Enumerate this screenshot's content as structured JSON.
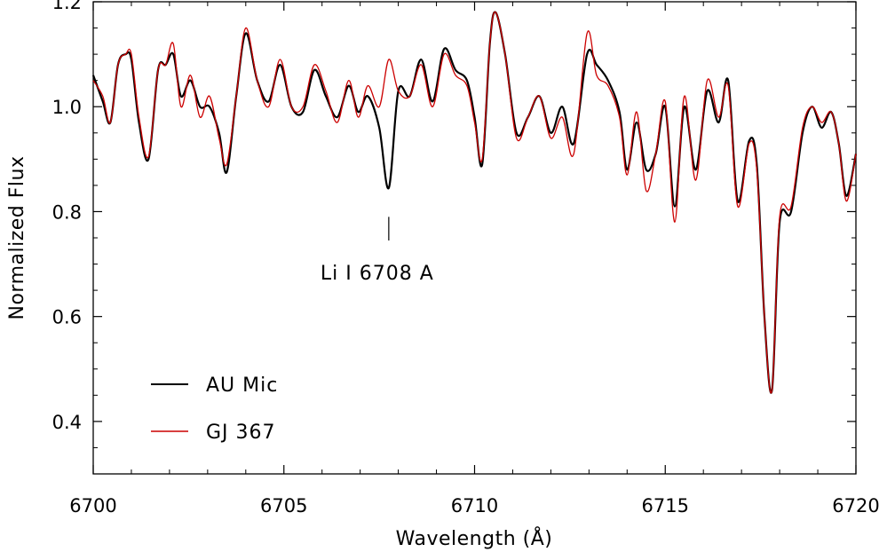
{
  "chart_data": {
    "type": "line",
    "xlabel": "Wavelength (Å)",
    "ylabel": "Normalized Flux",
    "xlim": [
      6700,
      6720
    ],
    "ylim": [
      0.3,
      1.2
    ],
    "xticks": [
      6700,
      6705,
      6710,
      6715,
      6720
    ],
    "xtick_labels": [
      "6700",
      "6705",
      "6710",
      "6715",
      "6720"
    ],
    "yticks": [
      0.4,
      0.6,
      0.8,
      1.0,
      1.2
    ],
    "ytick_labels": [
      "0.4",
      "0.6",
      "0.8",
      "1.0",
      "1.2"
    ],
    "grid": false,
    "legend_position": "lower-left",
    "annotations": [
      {
        "text": "Li I 6708 A",
        "x": 6707.75,
        "y_top": 0.79,
        "y_bottom": 0.745
      }
    ],
    "series": [
      {
        "name": "AU Mic",
        "color": "#000000",
        "x": [
          6700.0,
          6700.25,
          6700.45,
          6700.65,
          6700.85,
          6701.0,
          6701.2,
          6701.45,
          6701.7,
          6701.9,
          6702.1,
          6702.3,
          6702.55,
          6702.8,
          6703.05,
          6703.3,
          6703.5,
          6703.75,
          6704.0,
          6704.3,
          6704.6,
          6704.9,
          6705.2,
          6705.5,
          6705.8,
          6706.1,
          6706.4,
          6706.7,
          6706.95,
          6707.2,
          6707.5,
          6707.75,
          6708.0,
          6708.3,
          6708.6,
          6708.9,
          6709.2,
          6709.5,
          6709.8,
          6710.0,
          6710.2,
          6710.4,
          6710.55,
          6710.8,
          6711.1,
          6711.4,
          6711.7,
          6712.0,
          6712.3,
          6712.6,
          6712.95,
          6713.2,
          6713.5,
          6713.8,
          6714.0,
          6714.25,
          6714.5,
          6714.75,
          6715.0,
          6715.25,
          6715.5,
          6715.8,
          6716.1,
          6716.4,
          6716.65,
          6716.9,
          6717.2,
          6717.4,
          6717.6,
          6717.8,
          6718.0,
          6718.3,
          6718.6,
          6718.85,
          6719.1,
          6719.35,
          6719.55,
          6719.75,
          6720.0
        ],
        "y": [
          1.06,
          1.01,
          0.97,
          1.08,
          1.1,
          1.09,
          0.97,
          0.9,
          1.07,
          1.08,
          1.1,
          1.02,
          1.05,
          1.0,
          1.0,
          0.95,
          0.875,
          1.02,
          1.14,
          1.05,
          1.01,
          1.08,
          1.0,
          0.99,
          1.07,
          1.02,
          0.98,
          1.04,
          0.99,
          1.02,
          0.96,
          0.845,
          1.03,
          1.02,
          1.09,
          1.01,
          1.11,
          1.07,
          1.05,
          0.98,
          0.89,
          1.12,
          1.18,
          1.1,
          0.95,
          0.98,
          1.02,
          0.95,
          1.0,
          0.93,
          1.1,
          1.08,
          1.05,
          0.99,
          0.88,
          0.97,
          0.88,
          0.91,
          1.0,
          0.81,
          1.0,
          0.88,
          1.03,
          0.97,
          1.05,
          0.82,
          0.935,
          0.89,
          0.6,
          0.46,
          0.78,
          0.8,
          0.95,
          1.0,
          0.96,
          0.99,
          0.93,
          0.83,
          0.91
        ]
      },
      {
        "name": "GJ 367",
        "color": "#cc0000",
        "x": [
          6700.0,
          6700.25,
          6700.45,
          6700.65,
          6700.85,
          6701.0,
          6701.2,
          6701.45,
          6701.7,
          6701.9,
          6702.1,
          6702.3,
          6702.55,
          6702.8,
          6703.05,
          6703.3,
          6703.5,
          6703.75,
          6704.0,
          6704.3,
          6704.6,
          6704.9,
          6705.2,
          6705.5,
          6705.8,
          6706.1,
          6706.4,
          6706.7,
          6706.95,
          6707.2,
          6707.5,
          6707.75,
          6708.0,
          6708.3,
          6708.6,
          6708.9,
          6709.2,
          6709.5,
          6709.8,
          6710.0,
          6710.2,
          6710.4,
          6710.55,
          6710.8,
          6711.1,
          6711.4,
          6711.7,
          6712.0,
          6712.3,
          6712.6,
          6712.95,
          6713.2,
          6713.5,
          6713.8,
          6714.0,
          6714.25,
          6714.5,
          6714.75,
          6715.0,
          6715.25,
          6715.5,
          6715.8,
          6716.1,
          6716.4,
          6716.65,
          6716.9,
          6717.2,
          6717.4,
          6717.6,
          6717.8,
          6718.0,
          6718.3,
          6718.6,
          6718.85,
          6719.1,
          6719.35,
          6719.55,
          6719.75,
          6720.0
        ],
        "y": [
          1.05,
          1.02,
          0.97,
          1.08,
          1.1,
          1.1,
          0.98,
          0.905,
          1.07,
          1.08,
          1.12,
          1.0,
          1.06,
          0.98,
          1.02,
          0.94,
          0.89,
          1.02,
          1.15,
          1.05,
          1.0,
          1.09,
          1.0,
          1.0,
          1.08,
          1.03,
          0.97,
          1.05,
          0.98,
          1.04,
          1.0,
          1.09,
          1.03,
          1.02,
          1.08,
          1.0,
          1.1,
          1.06,
          1.04,
          0.97,
          0.9,
          1.12,
          1.18,
          1.1,
          0.94,
          0.98,
          1.02,
          0.94,
          0.98,
          0.91,
          1.14,
          1.06,
          1.04,
          0.98,
          0.87,
          0.99,
          0.84,
          0.91,
          1.01,
          0.78,
          1.02,
          0.86,
          1.05,
          0.98,
          1.04,
          0.81,
          0.93,
          0.88,
          0.6,
          0.46,
          0.79,
          0.81,
          0.96,
          1.0,
          0.97,
          0.99,
          0.93,
          0.82,
          0.91
        ]
      }
    ]
  }
}
